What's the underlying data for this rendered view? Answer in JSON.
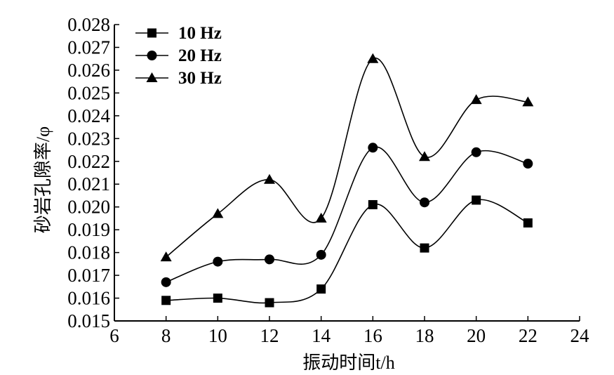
{
  "chart_data": {
    "type": "line",
    "title": "",
    "xlabel": "振动时间t/h",
    "ylabel": "砂岩孔隙率/φ",
    "xlim": [
      6,
      24
    ],
    "ylim": [
      0.015,
      0.028
    ],
    "x_ticks": [
      "6",
      "8",
      "10",
      "12",
      "14",
      "16",
      "18",
      "20",
      "22",
      "24"
    ],
    "y_ticks": [
      "0.015",
      "0.016",
      "0.017",
      "0.018",
      "0.019",
      "0.020",
      "0.021",
      "0.022",
      "0.023",
      "0.024",
      "0.025",
      "0.026",
      "0.027",
      "0.028"
    ],
    "x": [
      8,
      10,
      12,
      14,
      16,
      18,
      20,
      22
    ],
    "grid": false,
    "legend_position": "top-left",
    "series": [
      {
        "name": "10 Hz",
        "marker": "square",
        "values": [
          0.0159,
          0.016,
          0.0158,
          0.0164,
          0.0201,
          0.0182,
          0.0203,
          0.0193
        ]
      },
      {
        "name": "20 Hz",
        "marker": "circle",
        "values": [
          0.0167,
          0.0176,
          0.0177,
          0.0179,
          0.0226,
          0.0202,
          0.0224,
          0.0219
        ]
      },
      {
        "name": "30 Hz",
        "marker": "triangle",
        "values": [
          0.0178,
          0.0197,
          0.0212,
          0.0195,
          0.0265,
          0.0222,
          0.0247,
          0.0246
        ]
      }
    ]
  }
}
